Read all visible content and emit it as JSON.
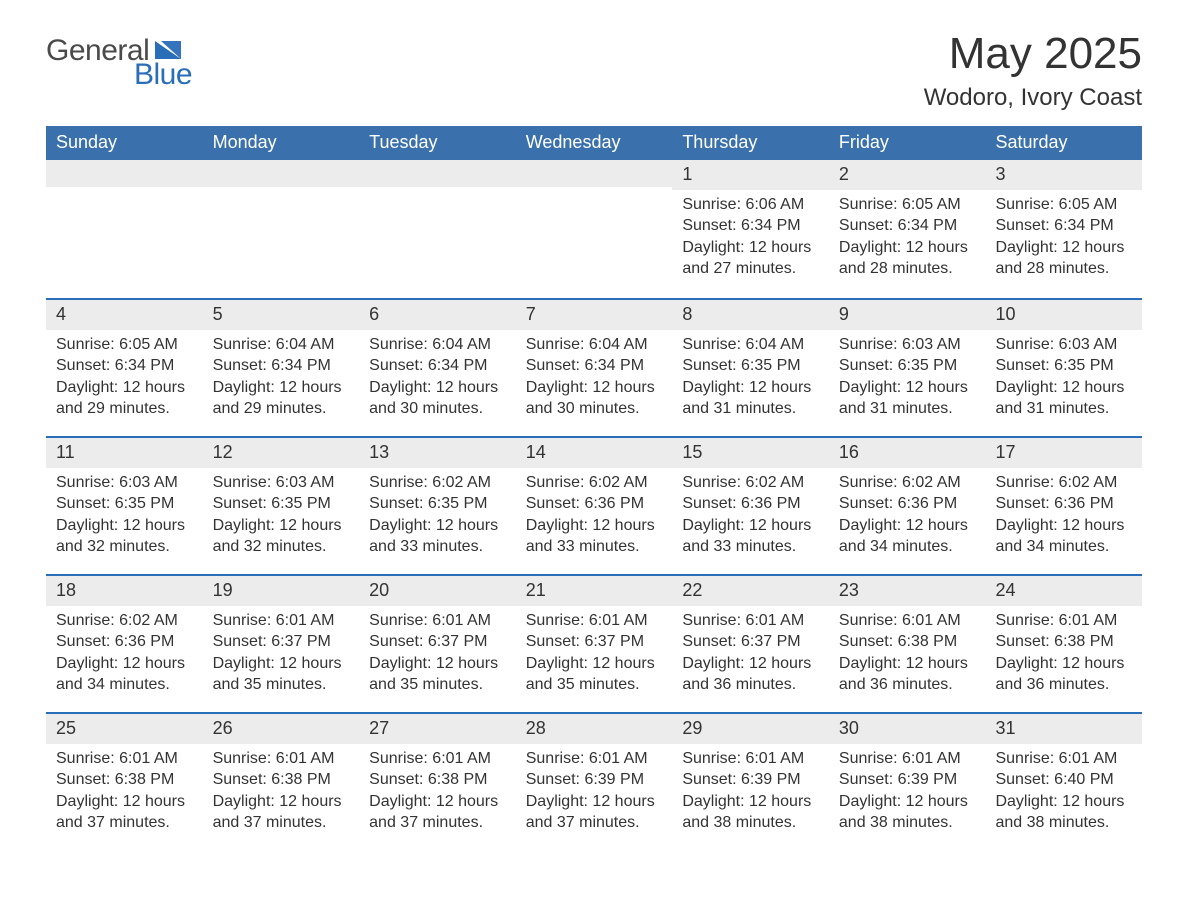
{
  "logo": {
    "main": "General",
    "sub": "Blue",
    "text_color_main": "#4a4a4a",
    "text_color_sub": "#2a6db8",
    "icon_color": "#2a6db8"
  },
  "header": {
    "month_title": "May 2025",
    "location": "Wodoro, Ivory Coast"
  },
  "calendar": {
    "type": "calendar-table",
    "header_bg": "#3a71ad",
    "header_text_color": "#ffffff",
    "daynum_bg": "#ececec",
    "week_border_color": "#2a6db8",
    "text_color": "#333333",
    "background_color": "#ffffff",
    "font_size_body": 16,
    "font_size_header": 18,
    "font_size_title": 44,
    "font_size_location": 24,
    "day_names": [
      "Sunday",
      "Monday",
      "Tuesday",
      "Wednesday",
      "Thursday",
      "Friday",
      "Saturday"
    ],
    "weeks": [
      [
        {
          "day": null
        },
        {
          "day": null
        },
        {
          "day": null
        },
        {
          "day": null
        },
        {
          "day": "1",
          "sunrise": "Sunrise: 6:06 AM",
          "sunset": "Sunset: 6:34 PM",
          "daylight": "Daylight: 12 hours and 27 minutes."
        },
        {
          "day": "2",
          "sunrise": "Sunrise: 6:05 AM",
          "sunset": "Sunset: 6:34 PM",
          "daylight": "Daylight: 12 hours and 28 minutes."
        },
        {
          "day": "3",
          "sunrise": "Sunrise: 6:05 AM",
          "sunset": "Sunset: 6:34 PM",
          "daylight": "Daylight: 12 hours and 28 minutes."
        }
      ],
      [
        {
          "day": "4",
          "sunrise": "Sunrise: 6:05 AM",
          "sunset": "Sunset: 6:34 PM",
          "daylight": "Daylight: 12 hours and 29 minutes."
        },
        {
          "day": "5",
          "sunrise": "Sunrise: 6:04 AM",
          "sunset": "Sunset: 6:34 PM",
          "daylight": "Daylight: 12 hours and 29 minutes."
        },
        {
          "day": "6",
          "sunrise": "Sunrise: 6:04 AM",
          "sunset": "Sunset: 6:34 PM",
          "daylight": "Daylight: 12 hours and 30 minutes."
        },
        {
          "day": "7",
          "sunrise": "Sunrise: 6:04 AM",
          "sunset": "Sunset: 6:34 PM",
          "daylight": "Daylight: 12 hours and 30 minutes."
        },
        {
          "day": "8",
          "sunrise": "Sunrise: 6:04 AM",
          "sunset": "Sunset: 6:35 PM",
          "daylight": "Daylight: 12 hours and 31 minutes."
        },
        {
          "day": "9",
          "sunrise": "Sunrise: 6:03 AM",
          "sunset": "Sunset: 6:35 PM",
          "daylight": "Daylight: 12 hours and 31 minutes."
        },
        {
          "day": "10",
          "sunrise": "Sunrise: 6:03 AM",
          "sunset": "Sunset: 6:35 PM",
          "daylight": "Daylight: 12 hours and 31 minutes."
        }
      ],
      [
        {
          "day": "11",
          "sunrise": "Sunrise: 6:03 AM",
          "sunset": "Sunset: 6:35 PM",
          "daylight": "Daylight: 12 hours and 32 minutes."
        },
        {
          "day": "12",
          "sunrise": "Sunrise: 6:03 AM",
          "sunset": "Sunset: 6:35 PM",
          "daylight": "Daylight: 12 hours and 32 minutes."
        },
        {
          "day": "13",
          "sunrise": "Sunrise: 6:02 AM",
          "sunset": "Sunset: 6:35 PM",
          "daylight": "Daylight: 12 hours and 33 minutes."
        },
        {
          "day": "14",
          "sunrise": "Sunrise: 6:02 AM",
          "sunset": "Sunset: 6:36 PM",
          "daylight": "Daylight: 12 hours and 33 minutes."
        },
        {
          "day": "15",
          "sunrise": "Sunrise: 6:02 AM",
          "sunset": "Sunset: 6:36 PM",
          "daylight": "Daylight: 12 hours and 33 minutes."
        },
        {
          "day": "16",
          "sunrise": "Sunrise: 6:02 AM",
          "sunset": "Sunset: 6:36 PM",
          "daylight": "Daylight: 12 hours and 34 minutes."
        },
        {
          "day": "17",
          "sunrise": "Sunrise: 6:02 AM",
          "sunset": "Sunset: 6:36 PM",
          "daylight": "Daylight: 12 hours and 34 minutes."
        }
      ],
      [
        {
          "day": "18",
          "sunrise": "Sunrise: 6:02 AM",
          "sunset": "Sunset: 6:36 PM",
          "daylight": "Daylight: 12 hours and 34 minutes."
        },
        {
          "day": "19",
          "sunrise": "Sunrise: 6:01 AM",
          "sunset": "Sunset: 6:37 PM",
          "daylight": "Daylight: 12 hours and 35 minutes."
        },
        {
          "day": "20",
          "sunrise": "Sunrise: 6:01 AM",
          "sunset": "Sunset: 6:37 PM",
          "daylight": "Daylight: 12 hours and 35 minutes."
        },
        {
          "day": "21",
          "sunrise": "Sunrise: 6:01 AM",
          "sunset": "Sunset: 6:37 PM",
          "daylight": "Daylight: 12 hours and 35 minutes."
        },
        {
          "day": "22",
          "sunrise": "Sunrise: 6:01 AM",
          "sunset": "Sunset: 6:37 PM",
          "daylight": "Daylight: 12 hours and 36 minutes."
        },
        {
          "day": "23",
          "sunrise": "Sunrise: 6:01 AM",
          "sunset": "Sunset: 6:38 PM",
          "daylight": "Daylight: 12 hours and 36 minutes."
        },
        {
          "day": "24",
          "sunrise": "Sunrise: 6:01 AM",
          "sunset": "Sunset: 6:38 PM",
          "daylight": "Daylight: 12 hours and 36 minutes."
        }
      ],
      [
        {
          "day": "25",
          "sunrise": "Sunrise: 6:01 AM",
          "sunset": "Sunset: 6:38 PM",
          "daylight": "Daylight: 12 hours and 37 minutes."
        },
        {
          "day": "26",
          "sunrise": "Sunrise: 6:01 AM",
          "sunset": "Sunset: 6:38 PM",
          "daylight": "Daylight: 12 hours and 37 minutes."
        },
        {
          "day": "27",
          "sunrise": "Sunrise: 6:01 AM",
          "sunset": "Sunset: 6:38 PM",
          "daylight": "Daylight: 12 hours and 37 minutes."
        },
        {
          "day": "28",
          "sunrise": "Sunrise: 6:01 AM",
          "sunset": "Sunset: 6:39 PM",
          "daylight": "Daylight: 12 hours and 37 minutes."
        },
        {
          "day": "29",
          "sunrise": "Sunrise: 6:01 AM",
          "sunset": "Sunset: 6:39 PM",
          "daylight": "Daylight: 12 hours and 38 minutes."
        },
        {
          "day": "30",
          "sunrise": "Sunrise: 6:01 AM",
          "sunset": "Sunset: 6:39 PM",
          "daylight": "Daylight: 12 hours and 38 minutes."
        },
        {
          "day": "31",
          "sunrise": "Sunrise: 6:01 AM",
          "sunset": "Sunset: 6:40 PM",
          "daylight": "Daylight: 12 hours and 38 minutes."
        }
      ]
    ]
  }
}
